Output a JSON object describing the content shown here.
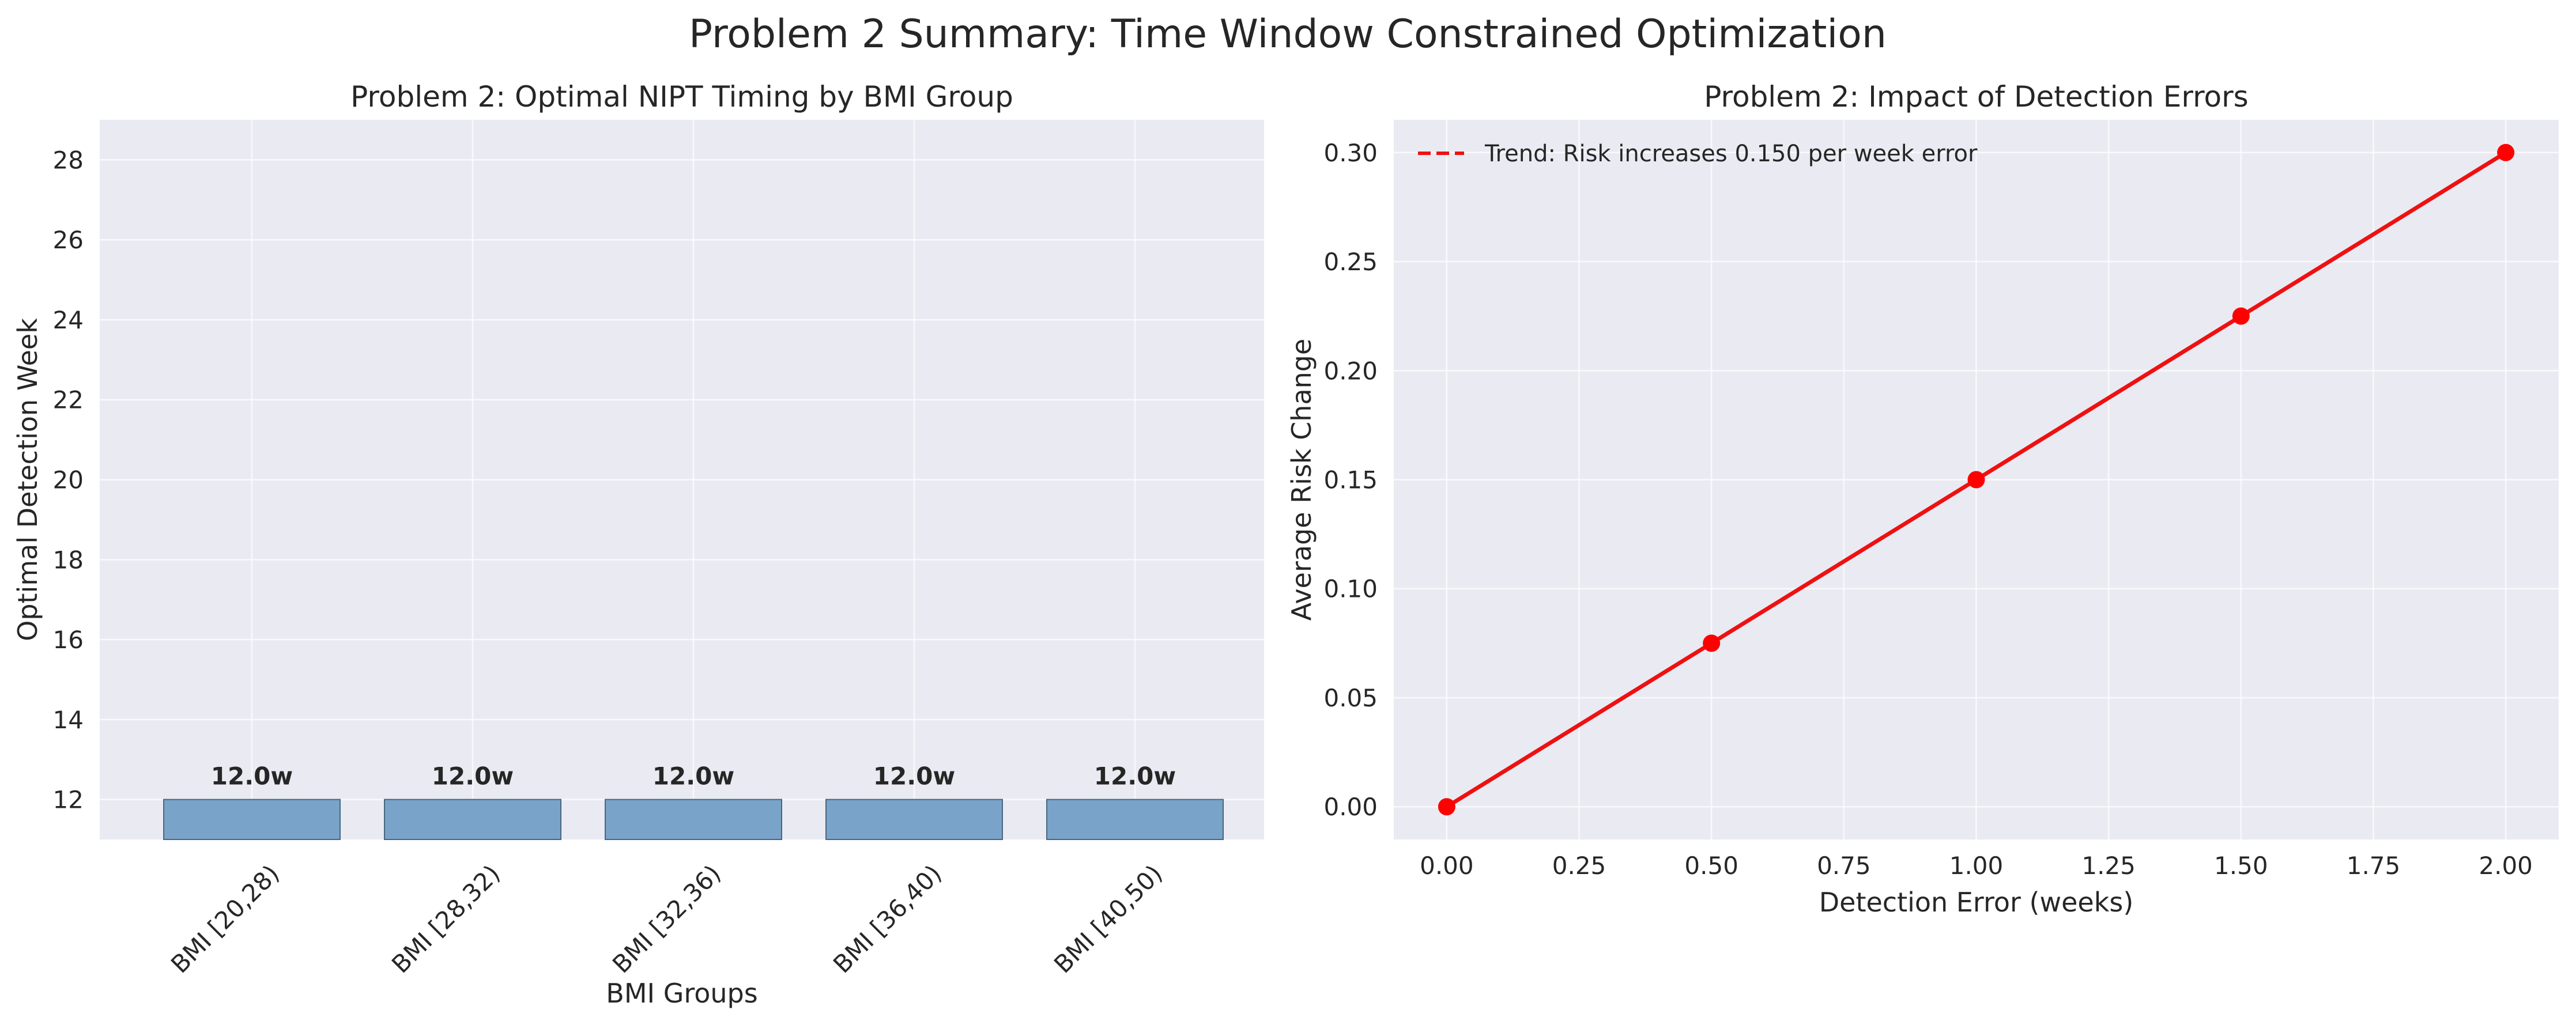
{
  "figure": {
    "title": "Problem 2 Summary: Time Window Constrained Optimization"
  },
  "colors": {
    "axes_background": "#eaeaf2",
    "grid": "#ffffff",
    "bar_fill": "#7aa3c9",
    "bar_edge": "#4a6680",
    "line": "#ee1111",
    "marker": "#ff0000"
  },
  "chart_data": [
    {
      "type": "bar",
      "title": "Problem 2: Optimal NIPT Timing by BMI Group",
      "xlabel": "BMI Groups",
      "ylabel": "Optimal Detection Week",
      "categories": [
        "BMI [20,28)",
        "BMI [28,32)",
        "BMI [32,36)",
        "BMI [36,40)",
        "BMI [40,50)"
      ],
      "values": [
        12.0,
        12.0,
        12.0,
        12.0,
        12.0
      ],
      "data_labels": [
        "12.0w",
        "12.0w",
        "12.0w",
        "12.0w",
        "12.0w"
      ],
      "ylim": [
        11,
        29
      ],
      "yticks": [
        12,
        14,
        16,
        18,
        20,
        22,
        24,
        26,
        28
      ],
      "grid": true,
      "legend": "none"
    },
    {
      "type": "line",
      "title": "Problem 2: Impact of Detection Errors",
      "xlabel": "Detection Error (weeks)",
      "ylabel": "Average Risk Change",
      "x": [
        0.0,
        0.5,
        1.0,
        1.5,
        2.0
      ],
      "series": [
        {
          "name": "",
          "values": [
            0.0,
            0.075,
            0.15,
            0.225,
            0.3
          ],
          "style": "solid-with-markers"
        }
      ],
      "trend": {
        "name": "Trend: Risk increases 0.150 per week error",
        "slope": 0.15,
        "intercept": 0.0,
        "style": "dashed"
      },
      "xlim": [
        -0.1,
        2.1
      ],
      "ylim": [
        -0.015,
        0.315
      ],
      "xticks": [
        0.0,
        0.25,
        0.5,
        0.75,
        1.0,
        1.25,
        1.5,
        1.75,
        2.0
      ],
      "xtick_labels": [
        "0.00",
        "0.25",
        "0.50",
        "0.75",
        "1.00",
        "1.25",
        "1.50",
        "1.75",
        "2.00"
      ],
      "yticks": [
        0.0,
        0.05,
        0.1,
        0.15,
        0.2,
        0.25,
        0.3
      ],
      "ytick_labels": [
        "0.00",
        "0.05",
        "0.10",
        "0.15",
        "0.20",
        "0.25",
        "0.30"
      ],
      "grid": true,
      "legend": "top-left"
    }
  ]
}
